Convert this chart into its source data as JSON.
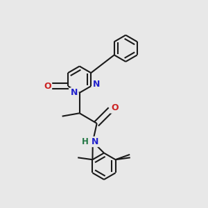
{
  "background_color": "#e8e8e8",
  "bond_color": "#1a1a1a",
  "n_color": "#2222cc",
  "o_color": "#cc2222",
  "h_color": "#227744",
  "line_width": 1.5,
  "fig_width": 3.0,
  "fig_height": 3.0,
  "dpi": 100,
  "xlim": [
    0,
    10
  ],
  "ylim": [
    0,
    10
  ]
}
